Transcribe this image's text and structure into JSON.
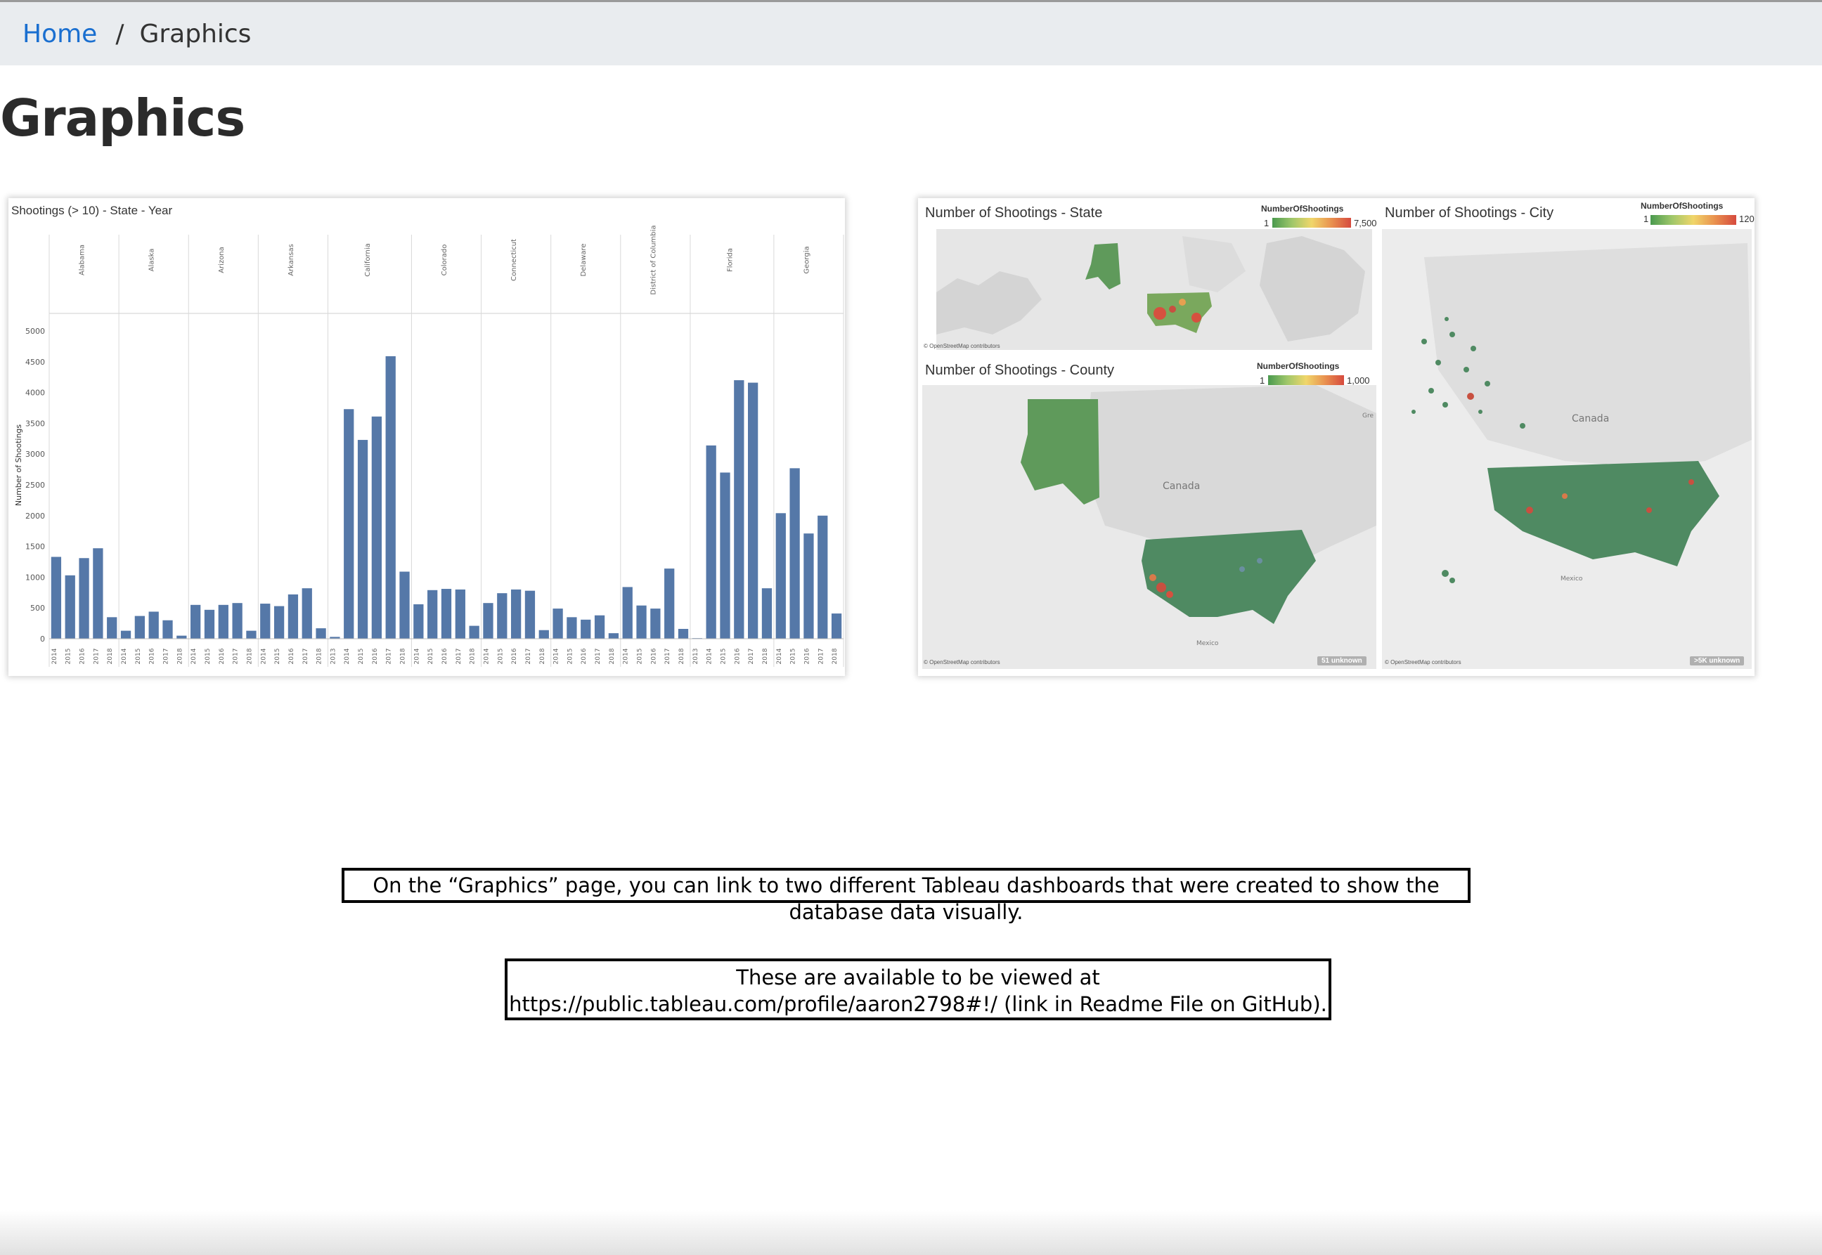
{
  "breadcrumb": {
    "home": "Home",
    "separator": "/",
    "current": "Graphics"
  },
  "page_title": "Graphics",
  "chart_data": {
    "type": "bar",
    "title": "Shootings (> 10) - State - Year",
    "ylabel": "Number of Shootings",
    "xlabel": "",
    "ylim": [
      0,
      5000
    ],
    "yticks": [
      0,
      500,
      1000,
      1500,
      2000,
      2500,
      3000,
      3500,
      4000,
      4500,
      5000
    ],
    "bar_color": "#5578a8",
    "groups": [
      {
        "name": "Alabama",
        "years": [
          "2014",
          "2015",
          "2016",
          "2017",
          "2018"
        ],
        "values": [
          1330,
          1030,
          1310,
          1470,
          350
        ]
      },
      {
        "name": "Alaska",
        "years": [
          "2014",
          "2015",
          "2016",
          "2017",
          "2018"
        ],
        "values": [
          130,
          370,
          440,
          300,
          50
        ]
      },
      {
        "name": "Arizona",
        "years": [
          "2014",
          "2015",
          "2016",
          "2017",
          "2018"
        ],
        "values": [
          550,
          470,
          550,
          580,
          130
        ]
      },
      {
        "name": "Arkansas",
        "years": [
          "2014",
          "2015",
          "2016",
          "2017",
          "2018"
        ],
        "values": [
          570,
          530,
          720,
          820,
          170
        ]
      },
      {
        "name": "California",
        "years": [
          "2013",
          "2014",
          "2015",
          "2016",
          "2017",
          "2018"
        ],
        "values": [
          30,
          3730,
          3230,
          3610,
          4590,
          1090
        ]
      },
      {
        "name": "Colorado",
        "years": [
          "2014",
          "2015",
          "2016",
          "2017",
          "2018"
        ],
        "values": [
          560,
          790,
          810,
          800,
          210
        ]
      },
      {
        "name": "Connecticut",
        "years": [
          "2014",
          "2015",
          "2016",
          "2017",
          "2018"
        ],
        "values": [
          580,
          740,
          800,
          780,
          140
        ]
      },
      {
        "name": "Delaware",
        "years": [
          "2014",
          "2015",
          "2016",
          "2017",
          "2018"
        ],
        "values": [
          490,
          350,
          310,
          380,
          90
        ]
      },
      {
        "name": "District of Columbia",
        "years": [
          "2014",
          "2015",
          "2016",
          "2017",
          "2018"
        ],
        "values": [
          840,
          540,
          490,
          1140,
          160
        ]
      },
      {
        "name": "Florida",
        "years": [
          "2013",
          "2014",
          "2015",
          "2016",
          "2017",
          "2018"
        ],
        "values": [
          10,
          3140,
          2700,
          4200,
          4160,
          820
        ]
      },
      {
        "name": "Georgia",
        "years": [
          "2014",
          "2015",
          "2016",
          "2017",
          "2018"
        ],
        "values": [
          2040,
          2770,
          1710,
          2000,
          410
        ]
      }
    ]
  },
  "maps": {
    "state": {
      "title": "Number of Shootings - State",
      "legend_title": "NumberOfShootings",
      "min": "1",
      "max": "7,500",
      "credit": "© OpenStreetMap contributors"
    },
    "county": {
      "title": "Number of Shootings - County",
      "legend_title": "NumberOfShootings",
      "min": "1",
      "max": "1,000",
      "credit": "© OpenStreetMap contributors",
      "unknown": "51 unknown",
      "labels": {
        "canada": "Canada",
        "mexico": "Mexico",
        "gre": "Gre"
      }
    },
    "city": {
      "title": "Number of Shootings - City",
      "legend_title": "NumberOfShootings",
      "min": "1",
      "max": "120",
      "credit": "© OpenStreetMap contributors",
      "unknown": ">5K unknown",
      "labels": {
        "canada": "Canada",
        "mexico": "Mexico"
      }
    }
  },
  "notes": {
    "note1": "On the “Graphics” page, you can link to two different Tableau dashboards that were created to show the database data visually.",
    "note2": "These are available to be viewed at https://public.tableau.com/profile/aaron2798#!/ (link in Readme File on GitHub)."
  }
}
